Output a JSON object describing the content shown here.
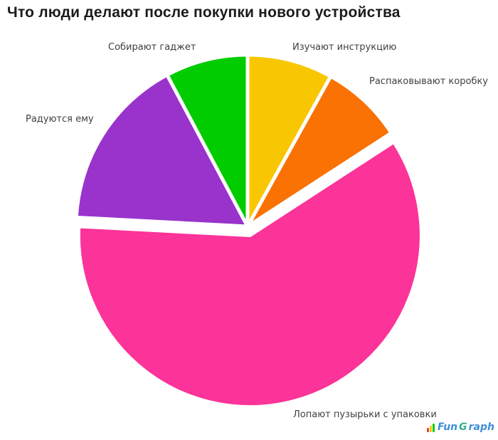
{
  "title": "Что люди делают после покупки нового устройства",
  "chart_data": {
    "type": "pie",
    "title": "Что люди делают после покупки нового устройства",
    "legend": "none",
    "labels_position": "outside",
    "values_shown_on_chart": false,
    "slices": [
      {
        "label": "Изучают инструкцию",
        "percent": 8,
        "start_angle": 0,
        "end_angle": 29,
        "color": "#F8C702",
        "exploded": false
      },
      {
        "label": "Распаковывают коробку",
        "percent": 8,
        "start_angle": 29,
        "end_angle": 57,
        "color": "#FA7104",
        "exploded": false
      },
      {
        "label": "Лопают пузырьки с упаковки",
        "percent": 60,
        "start_angle": 57,
        "end_angle": 273,
        "color": "#FC3399",
        "exploded": true
      },
      {
        "label": "Радуются ему",
        "percent": 16,
        "start_angle": 273,
        "end_angle": 332,
        "color": "#9933CC",
        "exploded": false
      },
      {
        "label": "Собирают гаджет",
        "percent": 8,
        "start_angle": 332,
        "end_angle": 360,
        "color": "#00CC00",
        "exploded": false
      }
    ]
  },
  "watermark": {
    "part1": "Fun",
    "part2": "G",
    "part3": "raph",
    "icon_bar_colors": [
      "#E8433A",
      "#F8C702",
      "#00CC00"
    ]
  },
  "colors": {
    "background": "#FFFFFF",
    "title_text": "#1B1B1B",
    "label_text": "#3F3F3F",
    "slice_gap": "#FFFFFF"
  }
}
